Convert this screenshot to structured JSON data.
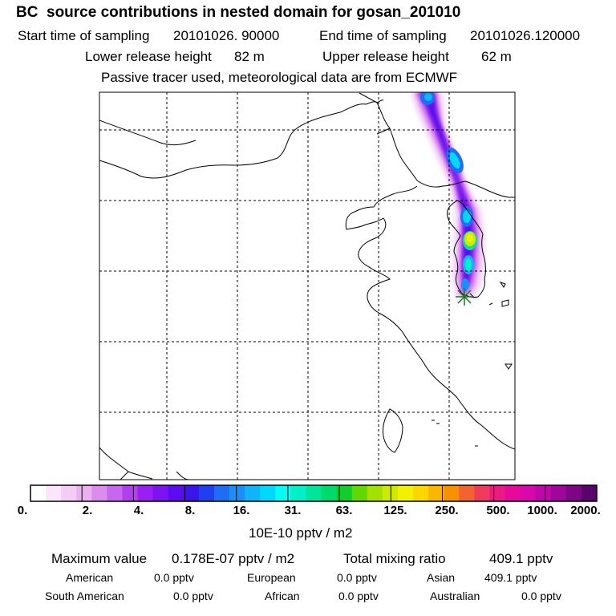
{
  "header": {
    "title": "BC  source contributions in nested domain for gosan_201010",
    "start_label": "Start time of sampling",
    "start_value": "20101026. 90000",
    "end_label": "End time of sampling",
    "end_value": "20101026.120000",
    "lower_label": "Lower release height",
    "lower_value": "82 m",
    "upper_label": "Upper release height",
    "upper_value": "62 m",
    "tracer_note": "Passive tracer used, meteorological data are from ECMWF"
  },
  "colorbar": {
    "labels": [
      "0.",
      "2.",
      "4.",
      "8.",
      "16.",
      "31.",
      "63.",
      "125.",
      "250.",
      "500.",
      "1000.",
      "2000."
    ],
    "colors": [
      "#ffffff",
      "#fbe6fb",
      "#f4ccf6",
      "#eab1f1",
      "#dc8cee",
      "#c766ee",
      "#b13ff0",
      "#9b1ef2",
      "#7c14f2",
      "#5b0cf0",
      "#3c14ee",
      "#2040f0",
      "#1f6cf5",
      "#1a8ff8",
      "#10b4fb",
      "#00d9fd",
      "#00fcf2",
      "#00f0c8",
      "#00e59a",
      "#00da6a",
      "#10ce2e",
      "#62d700",
      "#a3e200",
      "#cdea00",
      "#f2f200",
      "#fbd700",
      "#fbb600",
      "#f99000",
      "#f56232",
      "#f13b5c",
      "#ee1a83",
      "#e8099c",
      "#d808ac",
      "#bf07aa",
      "#a0069c",
      "#7d0586",
      "#5a036a"
    ],
    "unit": "10E-10 pptv / m2"
  },
  "stats": {
    "max_label": "Maximum value",
    "max_value": "0.178E-07 pptv / m2",
    "total_label": "Total mixing ratio",
    "total_value": "409.1 pptv",
    "regions": [
      {
        "name": "American",
        "value": "0.0 pptv"
      },
      {
        "name": "European",
        "value": "0.0 pptv"
      },
      {
        "name": "Asian",
        "value": "409.1 pptv"
      },
      {
        "name": "South American",
        "value": "0.0 pptv"
      },
      {
        "name": "African",
        "value": "0.0 pptv"
      },
      {
        "name": "Australian",
        "value": "0.0 pptv"
      }
    ]
  },
  "colors": {
    "frame": "#000000",
    "grid": "#000000",
    "coast": "#000000",
    "receptor_marker": "#1c7a1c"
  }
}
